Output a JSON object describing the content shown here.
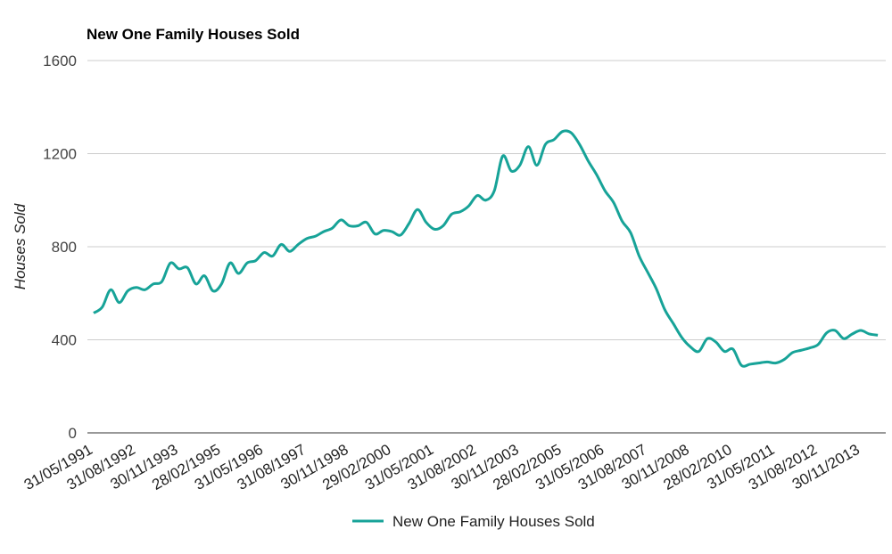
{
  "chart_data": {
    "type": "line",
    "title": "New One Family Houses Sold",
    "y_label": "Houses Sold",
    "categories": [
      "31/05/1991",
      null,
      null,
      null,
      null,
      "31/08/1992",
      null,
      null,
      null,
      null,
      "30/11/1993",
      null,
      null,
      null,
      null,
      "28/02/1995",
      null,
      null,
      null,
      null,
      "31/05/1996",
      null,
      null,
      null,
      null,
      "31/08/1997",
      null,
      null,
      null,
      null,
      "30/11/1998",
      null,
      null,
      null,
      null,
      "29/02/2000",
      null,
      null,
      null,
      null,
      "31/05/2001",
      null,
      null,
      null,
      null,
      "31/08/2002",
      null,
      null,
      null,
      null,
      "30/11/2003",
      null,
      null,
      null,
      null,
      "28/02/2005",
      null,
      null,
      null,
      null,
      "31/05/2006",
      null,
      null,
      null,
      null,
      "31/08/2007",
      null,
      null,
      null,
      null,
      "30/11/2008",
      null,
      null,
      null,
      null,
      "28/02/2010",
      null,
      null,
      null,
      null,
      "31/05/2011",
      null,
      null,
      null,
      null,
      "31/08/2012",
      null,
      null,
      null,
      null,
      "30/11/2013",
      null,
      null
    ],
    "series": [
      {
        "name": "New One Family Houses Sold",
        "color": "#17a398",
        "values": [
          515,
          540,
          615,
          560,
          610,
          625,
          615,
          640,
          650,
          730,
          705,
          710,
          640,
          675,
          610,
          640,
          730,
          685,
          730,
          740,
          775,
          760,
          810,
          780,
          810,
          835,
          845,
          865,
          880,
          915,
          890,
          890,
          905,
          855,
          870,
          865,
          850,
          900,
          960,
          905,
          875,
          890,
          940,
          950,
          975,
          1020,
          1000,
          1040,
          1190,
          1125,
          1150,
          1230,
          1150,
          1240,
          1260,
          1295,
          1290,
          1240,
          1170,
          1110,
          1040,
          990,
          910,
          860,
          760,
          690,
          620,
          530,
          470,
          410,
          370,
          350,
          405,
          390,
          350,
          360,
          290,
          295,
          300,
          305,
          300,
          315,
          345,
          355,
          365,
          380,
          430,
          440,
          405,
          425,
          440,
          425,
          420
        ]
      }
    ],
    "ylim": [
      0,
      1600
    ],
    "yticks": [
      0,
      400,
      800,
      1200,
      1600
    ],
    "grid": true,
    "legend": "bottom"
  }
}
